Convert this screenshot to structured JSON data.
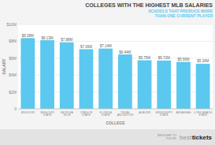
{
  "chart_data": {
    "type": "bar",
    "title": "COLLEGES WITH THE HIGHEST MLB SALARIES",
    "subtitle": "SCHOOLS THAT PRODUCE MORE\nTHAN ONE CURRENT PLAYER",
    "x_label": "COLLEGE",
    "y_label": "SALARY",
    "categories": [
      "MISSOURI",
      "MISSOURI\nSTATE",
      "GEORGIA\nTECH",
      "OREGON\nSTATE",
      "FLORIDA\nSTATE",
      "TEXAS\nARLINGTON",
      "AUBURN",
      "MISSISSIPPI\nSTATE",
      "ARKANSAS",
      "LONG BEACH\nSTATE"
    ],
    "values": [
      8.38,
      8.13,
      7.88,
      7.06,
      7.14,
      6.44,
      5.75,
      5.72,
      5.56,
      5.34
    ],
    "value_labels": [
      "$8.38M",
      "$8.13M",
      "$7.88M",
      "$7.06M",
      "$7.14M",
      "$6.44M",
      "$5.75M",
      "$5.72M",
      "$5.56M",
      "$5.34M"
    ],
    "color": "#5BC8F0",
    "ylim": [
      0,
      10
    ],
    "yticks": [
      0,
      {
        "value": 2,
        "label": "$2M"
      },
      {
        "value": 4,
        "label": "$4M"
      },
      {
        "value": 6,
        "label": "$6M"
      },
      {
        "value": 8,
        "label": "$8M"
      },
      {
        "value": 10,
        "label": "$10M"
      }
    ],
    "grid": true,
    "annotations": [
      "BROUGHT TO\nYOU BY",
      "best",
      "tickets"
    ]
  }
}
